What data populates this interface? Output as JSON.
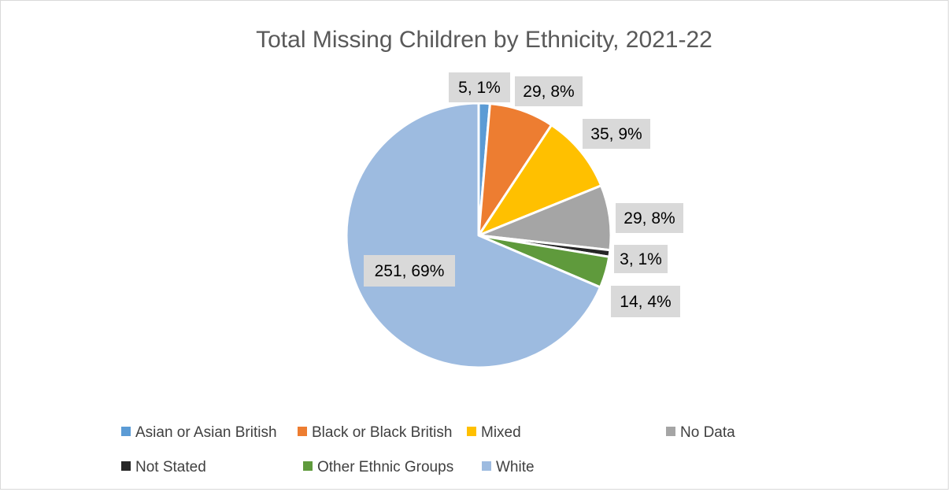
{
  "chart_data": {
    "type": "pie",
    "title": "Total Missing Children by Ethnicity, 2021-22",
    "categories": [
      "Asian or Asian British",
      "Black or Black British",
      "Mixed",
      "No Data",
      "Not Stated",
      "Other Ethnic Groups",
      "White"
    ],
    "values": [
      5,
      29,
      35,
      29,
      3,
      14,
      251
    ],
    "percentages": [
      "1%",
      "8%",
      "9%",
      "8%",
      "1%",
      "4%",
      "69%"
    ],
    "data_labels": [
      "5, 1%",
      "29, 8%",
      "35, 9%",
      "29, 8%",
      "3, 1%",
      "14, 4%",
      "251, 69%"
    ],
    "colors": [
      "#5b9bd5",
      "#ed7d31",
      "#ffc000",
      "#a5a5a5",
      "#262626",
      "#5f9a3c",
      "#9dbbe0"
    ],
    "legend_position": "bottom",
    "legend": [
      {
        "label": "Asian or Asian British",
        "color": "#5b9bd5"
      },
      {
        "label": "Black or Black British",
        "color": "#ed7d31"
      },
      {
        "label": "Mixed",
        "color": "#ffc000"
      },
      {
        "label": "No Data",
        "color": "#a5a5a5"
      },
      {
        "label": "Not Stated",
        "color": "#262626"
      },
      {
        "label": "Other Ethnic Groups",
        "color": "#5f9a3c"
      },
      {
        "label": "White",
        "color": "#9dbbe0"
      }
    ],
    "label_box_color": "#d9d9d9",
    "slice_border_color": "#ffffff"
  }
}
